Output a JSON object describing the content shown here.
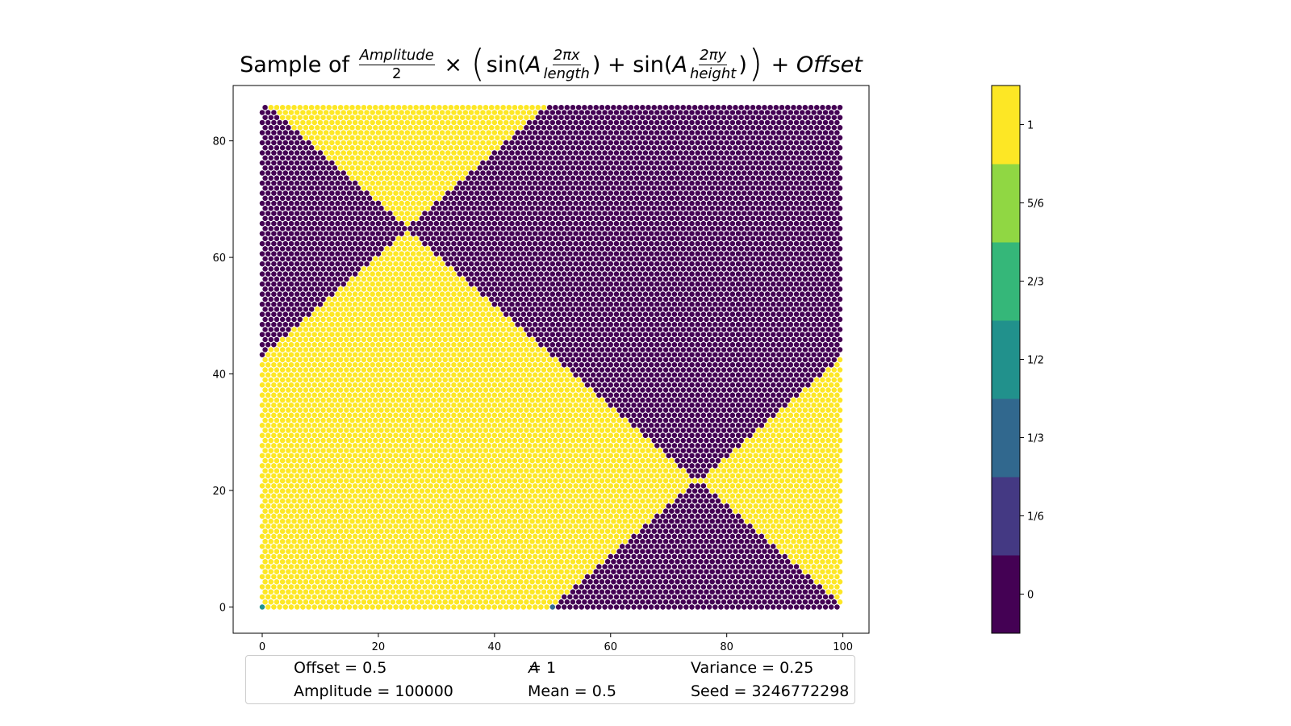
{
  "chart_data": {
    "type": "scatter",
    "title_parts": {
      "prefix": "Sample of",
      "amp_num": "Amplitude",
      "amp_den": "2",
      "times": "×",
      "sin1": "sin(",
      "A1": "A",
      "frac1_num": "2πx",
      "frac1_den": "length",
      "close1": ")",
      "plus1": "+",
      "sin2": "sin(",
      "A2": "A",
      "frac2_num": "2πy",
      "frac2_den": "height",
      "close2": ")",
      "plus2": "+",
      "offset": "Offset"
    },
    "xlim": [
      -5,
      104.5
    ],
    "ylim": [
      -4.5,
      89.5
    ],
    "xticks": [
      0,
      20,
      40,
      60,
      80,
      100
    ],
    "yticks": [
      0,
      20,
      40,
      60,
      80
    ],
    "grid": false,
    "point_grid": {
      "columns": 100,
      "rows": 100,
      "x_step": 1,
      "y_step": 0.866,
      "odd_row_x_shift": 0.5
    },
    "value_regions": {
      "description_free": true,
      "period_x": 100,
      "period_y": 86.6
    },
    "special_points": [
      {
        "x": 0,
        "y": 0,
        "value": 0.5
      },
      {
        "x": 50,
        "y": 0,
        "value": 0.25
      }
    ],
    "colormap_levels": [
      {
        "label": "0",
        "color": "#440154"
      },
      {
        "label": "1/6",
        "color": "#443983"
      },
      {
        "label": "1/3",
        "color": "#31688e"
      },
      {
        "label": "1/2",
        "color": "#21918c"
      },
      {
        "label": "2/3",
        "color": "#35b779"
      },
      {
        "label": "5/6",
        "color": "#90d743"
      },
      {
        "label": "1",
        "color": "#fde725"
      }
    ]
  },
  "info": {
    "offset": "Offset = 0.5",
    "amplitude": "Amplitude = 100000",
    "a_symbol": "A",
    "a_value": " = 1",
    "mean": "Mean = 0.5",
    "variance": "Variance = 0.25",
    "seed": "Seed = 3246772298"
  }
}
